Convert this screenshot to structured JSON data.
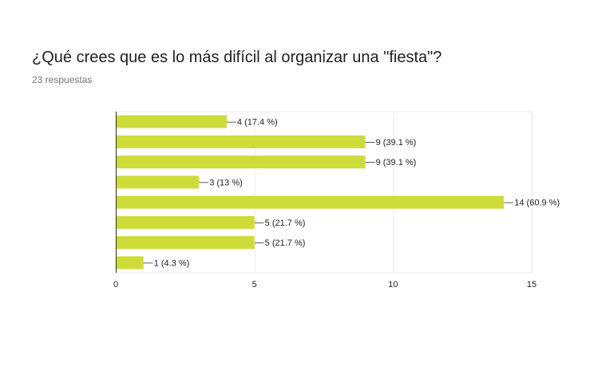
{
  "question": {
    "title": "¿Qué crees que es lo más difícil al organizar una \"fiesta\"?",
    "response_count": "23 respuestas"
  },
  "colors": {
    "bar": "#cddc39",
    "axis": "#333333",
    "grid": "#eeeeee",
    "text": "#212121",
    "muted": "#757575"
  },
  "chart_data": {
    "type": "bar",
    "orientation": "horizontal",
    "title": "¿Qué crees que es lo más difícil al organizar una \"fiesta\"?",
    "categories": [
      "",
      "",
      "",
      "",
      "",
      "",
      "",
      ""
    ],
    "values": [
      4,
      9,
      9,
      3,
      14,
      5,
      5,
      1
    ],
    "data_labels": [
      "4 (17.4 %)",
      "9 (39.1 %)",
      "9 (39.1 %)",
      "3 (13 %)",
      "14 (60.9 %)",
      "5 (21.7 %)",
      "5 (21.7 %)",
      "1 (4.3 %)"
    ],
    "xlim": [
      0,
      15
    ],
    "xticks": [
      0,
      5,
      10,
      15
    ],
    "xtick_labels": [
      "0",
      "5",
      "10",
      "15"
    ],
    "grid": true,
    "legend": "none"
  }
}
